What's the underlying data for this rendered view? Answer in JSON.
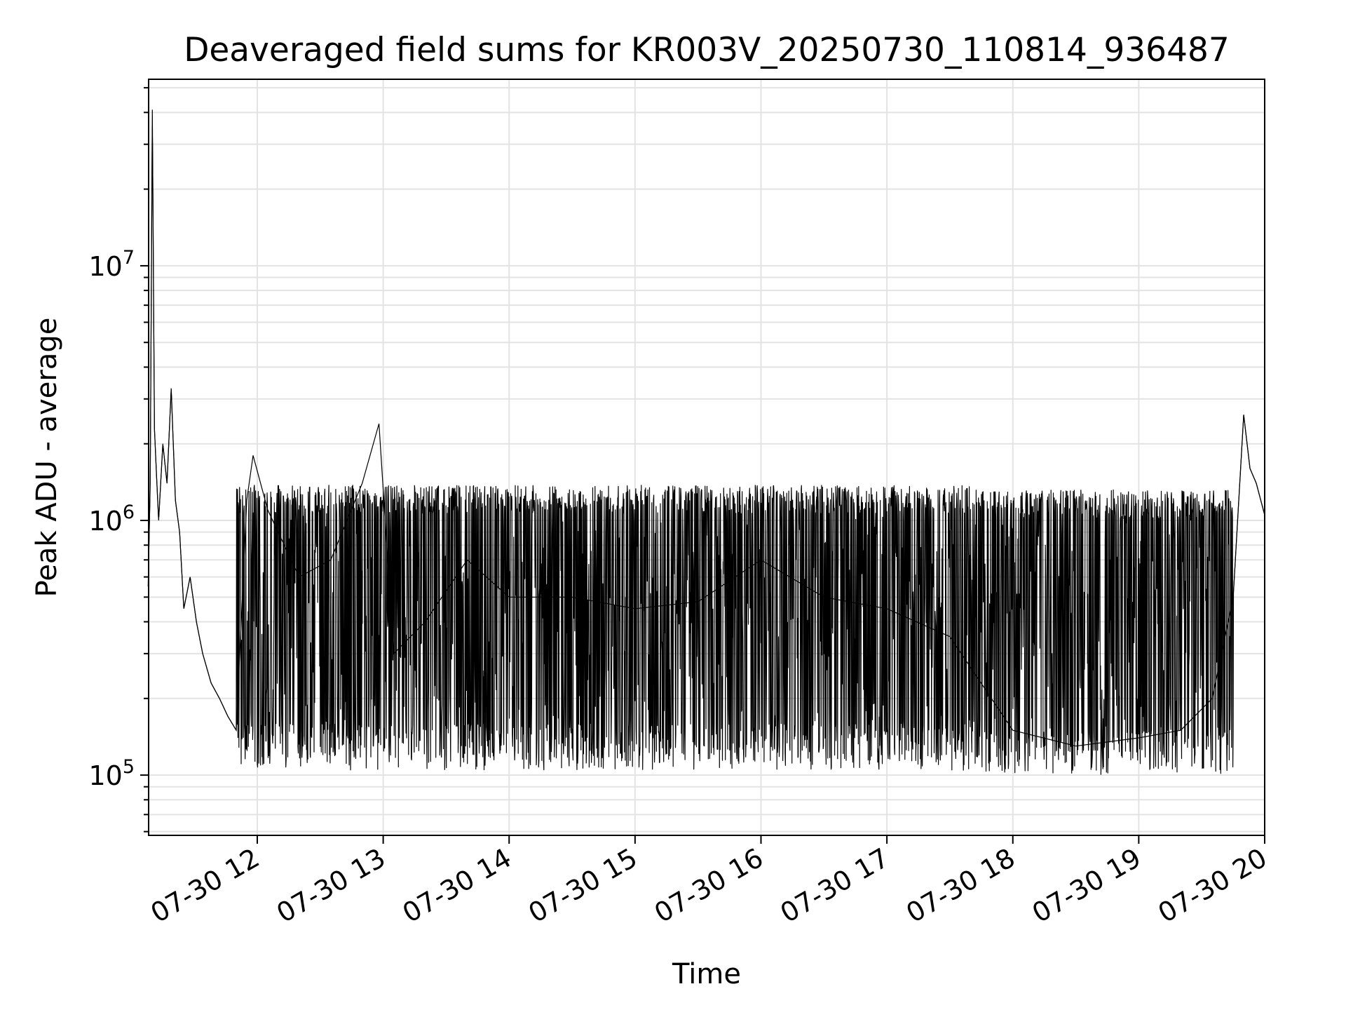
{
  "chart_data": {
    "type": "line",
    "title": "Deaveraged field sums for KR003V_20250730_110814_936487",
    "xlabel": "Time",
    "ylabel": "Peak ADU - average",
    "x_range": [
      "2025-07-30 11:08:14",
      "2025-07-30 20:00:00"
    ],
    "ylim": [
      58000,
      54000000
    ],
    "yscale": "log",
    "grid": true,
    "x_ticks": [
      "07-30 12",
      "07-30 13",
      "07-30 14",
      "07-30 15",
      "07-30 16",
      "07-30 17",
      "07-30 18",
      "07-30 19",
      "07-30 20"
    ],
    "x_tick_times": [
      "2025-07-30 12:00",
      "2025-07-30 13:00",
      "2025-07-30 14:00",
      "2025-07-30 15:00",
      "2025-07-30 16:00",
      "2025-07-30 17:00",
      "2025-07-30 18:00",
      "2025-07-30 19:00",
      "2025-07-30 20:00"
    ],
    "y_ticks": [
      {
        "base": "10",
        "exp": "5",
        "value": 100000
      },
      {
        "base": "10",
        "exp": "6",
        "value": 1000000
      },
      {
        "base": "10",
        "exp": "7",
        "value": 10000000
      }
    ],
    "series": [
      {
        "color": "#000000",
        "points": [
          [
            "2025-07-30 11:08",
            550000
          ],
          [
            "2025-07-30 11:09",
            1400000
          ],
          [
            "2025-07-30 11:10",
            41000000
          ],
          [
            "2025-07-30 11:11",
            2300000
          ],
          [
            "2025-07-30 11:12",
            1500000
          ],
          [
            "2025-07-30 11:13",
            1000000
          ],
          [
            "2025-07-30 11:15",
            2000000
          ],
          [
            "2025-07-30 11:17",
            1400000
          ],
          [
            "2025-07-30 11:19",
            3300000
          ],
          [
            "2025-07-30 11:21",
            1200000
          ],
          [
            "2025-07-30 11:23",
            900000
          ],
          [
            "2025-07-30 11:25",
            450000
          ],
          [
            "2025-07-30 11:28",
            600000
          ],
          [
            "2025-07-30 11:31",
            400000
          ],
          [
            "2025-07-30 11:34",
            300000
          ],
          [
            "2025-07-30 11:38",
            230000
          ],
          [
            "2025-07-30 11:42",
            200000
          ],
          [
            "2025-07-30 11:46",
            170000
          ],
          [
            "2025-07-30 11:50",
            150000
          ],
          [
            "2025-07-30 11:55",
            1200000
          ],
          [
            "2025-07-30 11:58",
            1800000
          ],
          [
            "2025-07-30 12:05",
            1100000
          ],
          [
            "2025-07-30 12:20",
            600000
          ],
          [
            "2025-07-30 12:35",
            700000
          ],
          [
            "2025-07-30 12:50",
            1400000
          ],
          [
            "2025-07-30 12:58",
            2400000
          ],
          [
            "2025-07-30 13:05",
            300000
          ],
          [
            "2025-07-30 13:20",
            400000
          ],
          [
            "2025-07-30 13:40",
            700000
          ],
          [
            "2025-07-30 14:00",
            500000
          ],
          [
            "2025-07-30 14:30",
            500000
          ],
          [
            "2025-07-30 15:00",
            450000
          ],
          [
            "2025-07-30 15:30",
            480000
          ],
          [
            "2025-07-30 16:00",
            700000
          ],
          [
            "2025-07-30 16:30",
            500000
          ],
          [
            "2025-07-30 17:00",
            450000
          ],
          [
            "2025-07-30 17:30",
            350000
          ],
          [
            "2025-07-30 18:00",
            150000
          ],
          [
            "2025-07-30 18:30",
            130000
          ],
          [
            "2025-07-30 19:00",
            140000
          ],
          [
            "2025-07-30 19:20",
            150000
          ],
          [
            "2025-07-30 19:35",
            200000
          ],
          [
            "2025-07-30 19:45",
            500000
          ],
          [
            "2025-07-30 19:50",
            2600000
          ],
          [
            "2025-07-30 19:53",
            1600000
          ],
          [
            "2025-07-30 19:56",
            1400000
          ],
          [
            "2025-07-30 20:00",
            1050000
          ]
        ],
        "envelope": [
          {
            "x_range": [
              "2025-07-30 11:50",
              "2025-07-30 13:00"
            ],
            "low": 110000,
            "high": 1250000
          },
          {
            "x_range": [
              "2025-07-30 13:00",
              "2025-07-30 17:40"
            ],
            "low": 110000,
            "high": 1250000
          },
          {
            "x_range": [
              "2025-07-30 17:40",
              "2025-07-30 19:45"
            ],
            "low": 105000,
            "high": 1200000
          }
        ]
      }
    ]
  }
}
